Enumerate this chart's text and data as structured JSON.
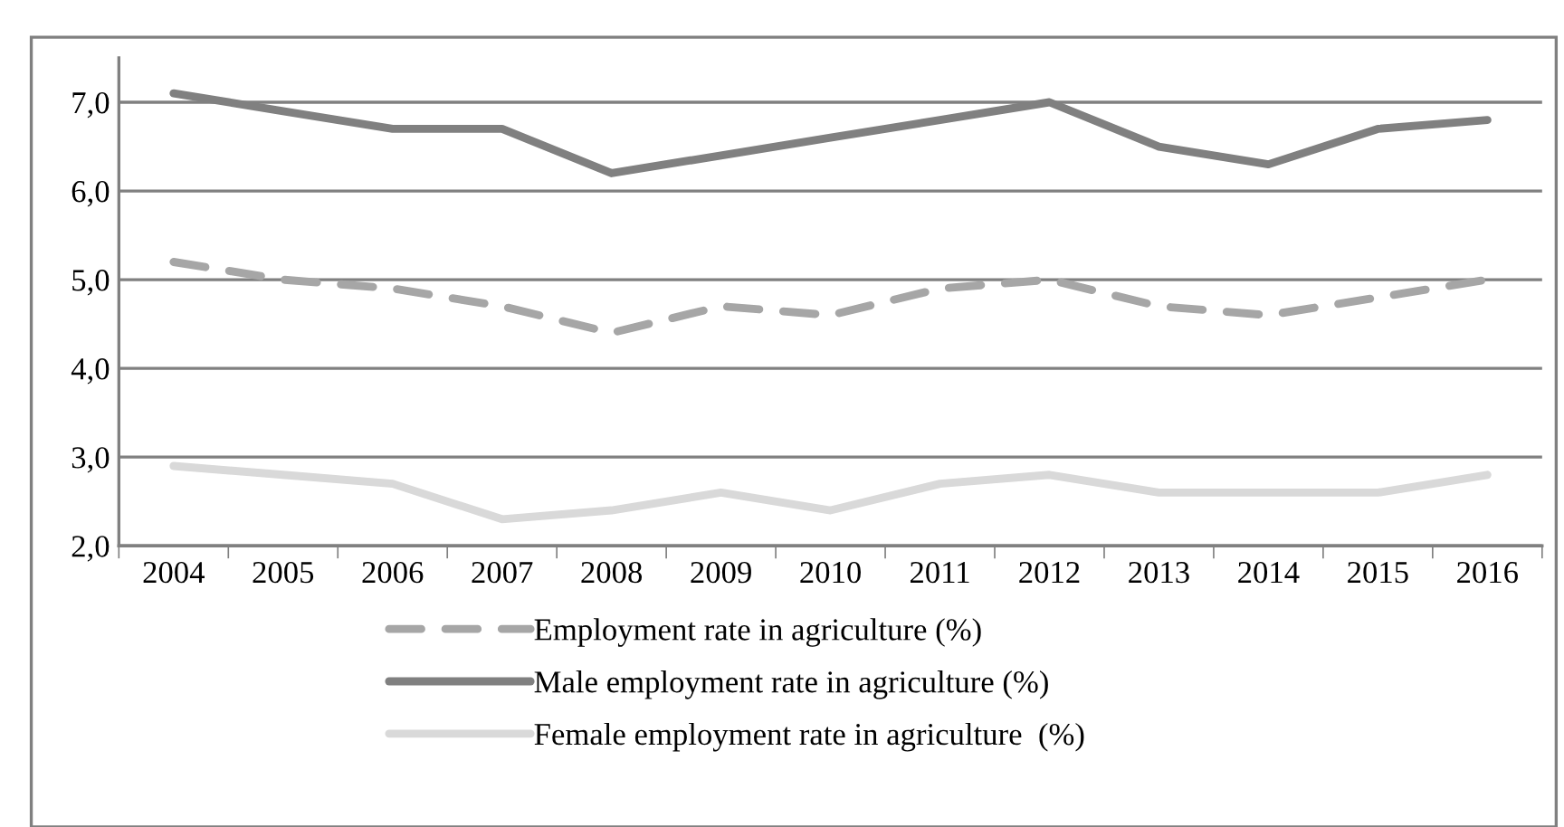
{
  "chart_data": {
    "type": "line",
    "categories": [
      "2004",
      "2005",
      "2006",
      "2007",
      "2008",
      "2009",
      "2010",
      "2011",
      "2012",
      "2013",
      "2014",
      "2015",
      "2016"
    ],
    "series": [
      {
        "name": "Employment rate in agriculture (%)",
        "color": "#a6a6a6",
        "line_style": "dashed",
        "values": [
          5.2,
          5.0,
          4.9,
          4.7,
          4.4,
          4.7,
          4.6,
          4.9,
          5.0,
          4.7,
          4.6,
          4.8,
          5.0
        ]
      },
      {
        "name": "Male employment rate in agriculture (%)",
        "color": "#808080",
        "line_style": "solid",
        "values": [
          7.1,
          6.9,
          6.7,
          6.7,
          6.2,
          6.4,
          6.6,
          6.8,
          7.0,
          6.5,
          6.3,
          6.7,
          6.8
        ]
      },
      {
        "name": "Female employment rate in agriculture  (%)",
        "color": "#d9d9d9",
        "line_style": "solid",
        "values": [
          2.9,
          2.8,
          2.7,
          2.3,
          2.4,
          2.6,
          2.4,
          2.7,
          2.8,
          2.6,
          2.6,
          2.6,
          2.8
        ]
      }
    ],
    "ylim": [
      2.0,
      7.5
    ],
    "yticks": [
      {
        "value": 2.0,
        "label": "2,0"
      },
      {
        "value": 3.0,
        "label": "3,0"
      },
      {
        "value": 4.0,
        "label": "4,0"
      },
      {
        "value": 5.0,
        "label": "5,0"
      },
      {
        "value": 6.0,
        "label": "6,0"
      },
      {
        "value": 7.0,
        "label": "7,0"
      }
    ],
    "grid": "y",
    "legend": "bottom",
    "marker": "none"
  }
}
